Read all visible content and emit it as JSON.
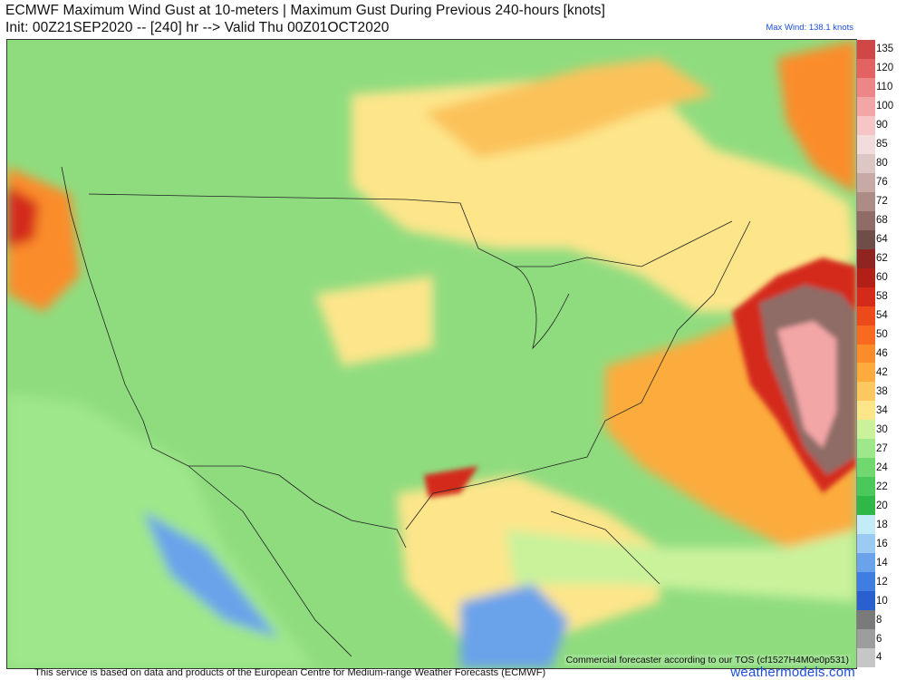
{
  "header": {
    "title_line1": "ECMWF Maximum Wind Gust at 10-meters | Maximum Gust During Previous 240-hours [knots]",
    "title_line2": "Init: 00Z21SEP2020 -- [240] hr --> Valid Thu 00Z01OCT2020",
    "max_wind": "Max Wind: 138.1 knots"
  },
  "map": {
    "tos_note": "Commercial forecaster according to our TOS (cf1527H4M0e0p531)"
  },
  "colorbar": {
    "levels": [
      {
        "label": "135",
        "color": "#cf4747"
      },
      {
        "label": "120",
        "color": "#e36363"
      },
      {
        "label": "110",
        "color": "#ed8686"
      },
      {
        "label": "100",
        "color": "#f3a6a6"
      },
      {
        "label": "90",
        "color": "#f6c6c6"
      },
      {
        "label": "85",
        "color": "#f2dcdc"
      },
      {
        "label": "80",
        "color": "#ddc6c3"
      },
      {
        "label": "76",
        "color": "#c7a9a5"
      },
      {
        "label": "72",
        "color": "#ad8c86"
      },
      {
        "label": "68",
        "color": "#8f6c66"
      },
      {
        "label": "64",
        "color": "#6f4d49"
      },
      {
        "label": "62",
        "color": "#8f2420"
      },
      {
        "label": "60",
        "color": "#b21f17"
      },
      {
        "label": "58",
        "color": "#d42a1a"
      },
      {
        "label": "54",
        "color": "#ed4a1c"
      },
      {
        "label": "50",
        "color": "#f76a1f"
      },
      {
        "label": "46",
        "color": "#fb8c2a"
      },
      {
        "label": "42",
        "color": "#fcab3c"
      },
      {
        "label": "38",
        "color": "#fdc85f"
      },
      {
        "label": "34",
        "color": "#fde58a"
      },
      {
        "label": "30",
        "color": "#c9f29b"
      },
      {
        "label": "27",
        "color": "#9ee78a"
      },
      {
        "label": "24",
        "color": "#70d86f"
      },
      {
        "label": "22",
        "color": "#4cc75a"
      },
      {
        "label": "20",
        "color": "#2fb847"
      },
      {
        "label": "18",
        "color": "#c4ecf8"
      },
      {
        "label": "16",
        "color": "#9bcbf2"
      },
      {
        "label": "14",
        "color": "#6aa3ea"
      },
      {
        "label": "12",
        "color": "#3f7de0"
      },
      {
        "label": "10",
        "color": "#2a5fce"
      },
      {
        "label": "8",
        "color": "#7a7a7a"
      },
      {
        "label": "6",
        "color": "#9d9d9d"
      },
      {
        "label": "4",
        "color": "#c6c6c6"
      }
    ]
  },
  "footer": {
    "disclaimer": "This service is based on data and products of the European Centre for Medium-range Weather Forecasts (ECMWF)",
    "brand": "weathermodels.com"
  }
}
